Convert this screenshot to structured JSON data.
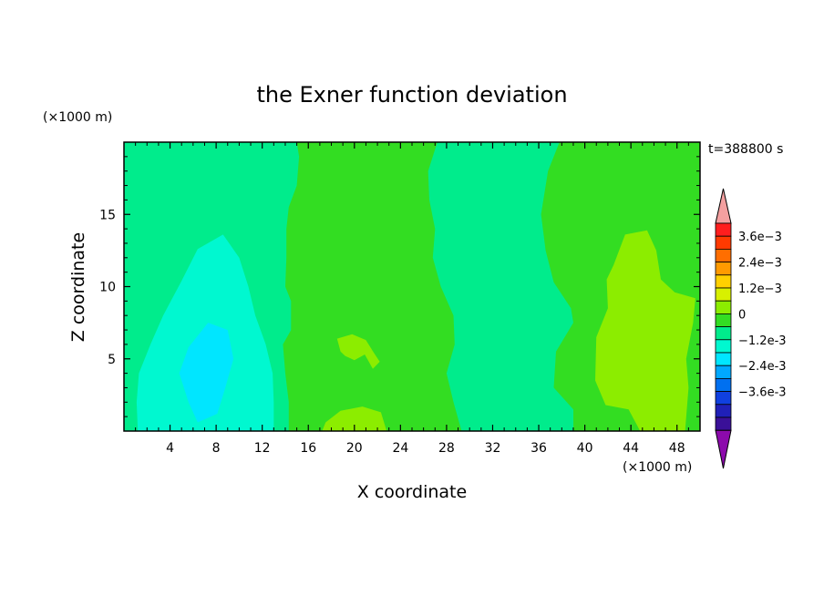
{
  "chart_data": {
    "type": "contour",
    "title": "the Exner function deviation",
    "xlabel": "X coordinate",
    "ylabel": "Z coordinate",
    "x_unit": "(×1000 m)",
    "y_unit": "(×1000 m)",
    "time_label": "t=388800 s",
    "xlim": [
      0,
      50
    ],
    "ylim": [
      0,
      20
    ],
    "x_ticks": [
      4,
      8,
      12,
      16,
      20,
      24,
      28,
      32,
      36,
      40,
      44,
      48
    ],
    "y_ticks": [
      5,
      10,
      15
    ],
    "colorbar": {
      "labels": [
        "3.6e-3",
        "2.4e-3",
        "1.2e-3",
        "0",
        "-1.2e-3",
        "-2.4e-3",
        "-3.6e-3"
      ],
      "label_values": [
        0.0036,
        0.0024,
        0.0012,
        0,
        -0.0012,
        -0.0024,
        -0.0036
      ],
      "levels_top_to_bottom": [
        {
          "upper": 0.0042,
          "color": "#ff1e1e"
        },
        {
          "upper": 0.0036,
          "color": "#ff3a00"
        },
        {
          "upper": 0.003,
          "color": "#ff6e00"
        },
        {
          "upper": 0.0024,
          "color": "#ff9a00"
        },
        {
          "upper": 0.0018,
          "color": "#ffd000"
        },
        {
          "upper": 0.0012,
          "color": "#d8f000"
        },
        {
          "upper": 0.0006,
          "color": "#8ced00"
        },
        {
          "upper": 0.0,
          "color": "#33dd22"
        },
        {
          "upper": -0.0006,
          "color": "#00ec8c"
        },
        {
          "upper": -0.0012,
          "color": "#00f8d0"
        },
        {
          "upper": -0.0018,
          "color": "#00e6ff"
        },
        {
          "upper": -0.0024,
          "color": "#00a8ff"
        },
        {
          "upper": -0.003,
          "color": "#0070f0"
        },
        {
          "upper": -0.0036,
          "color": "#1040e0"
        },
        {
          "upper": -0.0042,
          "color": "#2020b8"
        },
        {
          "upper": -0.0048,
          "color": "#3a1098"
        }
      ],
      "over_color": "#f4a0a0",
      "under_color": "#8c0aac"
    },
    "regions": [
      {
        "level": 0.0,
        "color": "#33dd22",
        "name": "background",
        "outline": [
          [
            0,
            0
          ],
          [
            50,
            0
          ],
          [
            50,
            20
          ],
          [
            0,
            20
          ]
        ]
      },
      {
        "level": -0.0006,
        "color": "#00ec8c",
        "name": "left-band",
        "outline": [
          [
            0,
            20
          ],
          [
            15,
            20
          ],
          [
            15.2,
            19
          ],
          [
            15,
            17
          ],
          [
            14.3,
            15.5
          ],
          [
            14.1,
            14
          ],
          [
            14.1,
            12
          ],
          [
            14,
            10
          ],
          [
            14.5,
            9
          ],
          [
            14.5,
            7
          ],
          [
            13.8,
            6
          ],
          [
            14,
            4
          ],
          [
            14.3,
            2
          ],
          [
            14.3,
            0
          ],
          [
            0,
            0
          ]
        ]
      },
      {
        "level": -0.0012,
        "color": "#00f8d0",
        "name": "left-cyan",
        "outline": [
          [
            1.2,
            0
          ],
          [
            13,
            0
          ],
          [
            13,
            2
          ],
          [
            12.9,
            4
          ],
          [
            12.3,
            6
          ],
          [
            11.4,
            8
          ],
          [
            10.8,
            10
          ],
          [
            10,
            12
          ],
          [
            8.6,
            13.6
          ],
          [
            6.4,
            12.6
          ],
          [
            5,
            10.4
          ],
          [
            3.4,
            8
          ],
          [
            2.3,
            6
          ],
          [
            1.3,
            4
          ],
          [
            1.1,
            2
          ]
        ]
      },
      {
        "level": -0.0018,
        "color": "#00e6ff",
        "name": "left-core",
        "outline": [
          [
            5.6,
            5.8
          ],
          [
            7.3,
            7.5
          ],
          [
            9,
            7
          ],
          [
            9.5,
            5
          ],
          [
            8.8,
            3
          ],
          [
            8.1,
            1.2
          ],
          [
            6.4,
            0.6
          ],
          [
            5.6,
            2
          ],
          [
            4.8,
            4
          ]
        ]
      },
      {
        "level": -0.0006,
        "color": "#00ec8c",
        "name": "middle-band",
        "outline": [
          [
            27.2,
            20
          ],
          [
            37.8,
            20
          ],
          [
            36.8,
            18
          ],
          [
            36.2,
            15
          ],
          [
            36.6,
            12.5
          ],
          [
            37.3,
            10.3
          ],
          [
            38.8,
            8.5
          ],
          [
            39,
            7.5
          ],
          [
            37.5,
            5.5
          ],
          [
            37.3,
            3
          ],
          [
            39,
            1.5
          ],
          [
            39,
            0
          ],
          [
            29.3,
            0
          ],
          [
            28.6,
            2
          ],
          [
            28,
            4
          ],
          [
            28.7,
            6
          ],
          [
            28.6,
            8
          ],
          [
            27.5,
            10
          ],
          [
            26.8,
            12
          ],
          [
            27,
            14
          ],
          [
            26.5,
            16
          ],
          [
            26.4,
            18
          ]
        ]
      },
      {
        "level": 0.0006,
        "color": "#8ced00",
        "name": "right-patch",
        "outline": [
          [
            42.5,
            11.5
          ],
          [
            43.5,
            13.6
          ],
          [
            45.4,
            13.9
          ],
          [
            46.2,
            12.5
          ],
          [
            46.6,
            10.5
          ],
          [
            47.8,
            9.6
          ],
          [
            49.6,
            9.2
          ],
          [
            49.4,
            7.5
          ],
          [
            48.8,
            5
          ],
          [
            49,
            3
          ],
          [
            48.7,
            0
          ],
          [
            44.8,
            0
          ],
          [
            43.8,
            1.5
          ],
          [
            41.8,
            1.8
          ],
          [
            40.9,
            3.5
          ],
          [
            41,
            6.5
          ],
          [
            42,
            8.5
          ],
          [
            41.9,
            10.5
          ]
        ]
      },
      {
        "level": 0.0006,
        "color": "#8ced00",
        "name": "middle-bottom-patch",
        "outline": [
          [
            17.2,
            0
          ],
          [
            22.8,
            0
          ],
          [
            22.3,
            1.3
          ],
          [
            20.7,
            1.7
          ],
          [
            18.8,
            1.4
          ],
          [
            17.5,
            0.6
          ]
        ]
      },
      {
        "level": 0.0006,
        "color": "#8ced00",
        "name": "middle-speck",
        "outline": [
          [
            18.5,
            6.4
          ],
          [
            19.8,
            6.7
          ],
          [
            21,
            6.3
          ],
          [
            21.7,
            5.4
          ],
          [
            22.2,
            4.8
          ],
          [
            21.6,
            4.3
          ],
          [
            20.9,
            5.3
          ],
          [
            20,
            4.9
          ],
          [
            19.2,
            5.2
          ],
          [
            18.8,
            5.5
          ]
        ]
      }
    ]
  }
}
